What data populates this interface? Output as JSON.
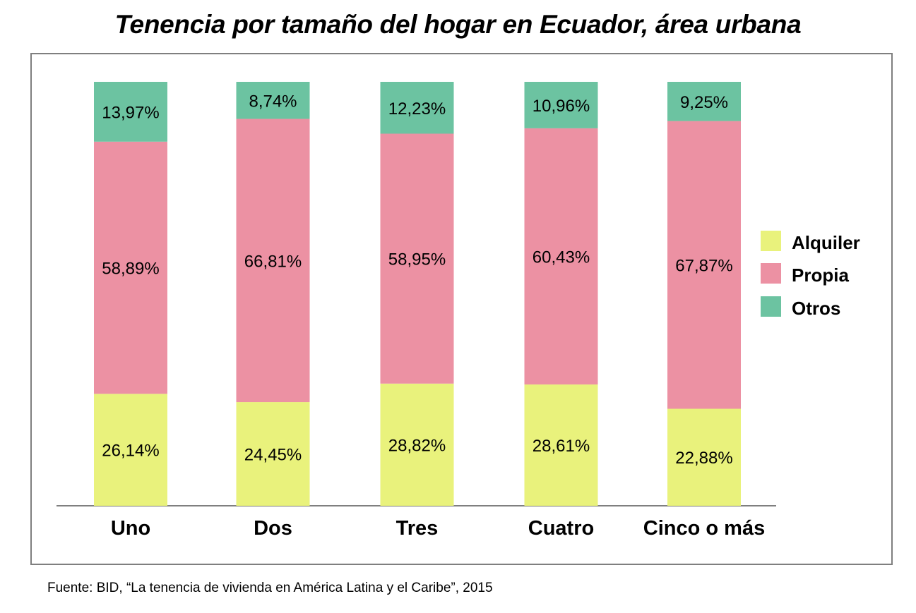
{
  "chart_data": {
    "type": "bar",
    "stacked": true,
    "title": "Tenencia por tamaño del hogar en Ecuador, área urbana",
    "xlabel": "",
    "ylabel": "",
    "ylim": [
      0,
      100
    ],
    "categories": [
      "Uno",
      "Dos",
      "Tres",
      "Cuatro",
      "Cinco o más"
    ],
    "series": [
      {
        "name": "Alquiler",
        "color": "#e9f27c",
        "values": [
          26.14,
          24.45,
          28.82,
          28.61,
          22.88
        ],
        "labels": [
          "26,14%",
          "24,45%",
          "28,82%",
          "28,61%",
          "22,88%"
        ]
      },
      {
        "name": "Propia",
        "color": "#ec91a3",
        "values": [
          58.89,
          66.81,
          58.95,
          60.43,
          67.87
        ],
        "labels": [
          "58,89%",
          "66,81%",
          "58,95%",
          "60,43%",
          "67,87%"
        ]
      },
      {
        "name": "Otros",
        "color": "#6cc3a1",
        "values": [
          13.97,
          8.74,
          12.23,
          10.96,
          9.25
        ],
        "labels": [
          "13,97%",
          "8,74%",
          "12,23%",
          "10,96%",
          "9,25%"
        ]
      }
    ],
    "legend_position": "right",
    "grid": false
  },
  "source": "Fuente: BID, “La tenencia de vivienda en  América Latina y el Caribe”, 2015"
}
